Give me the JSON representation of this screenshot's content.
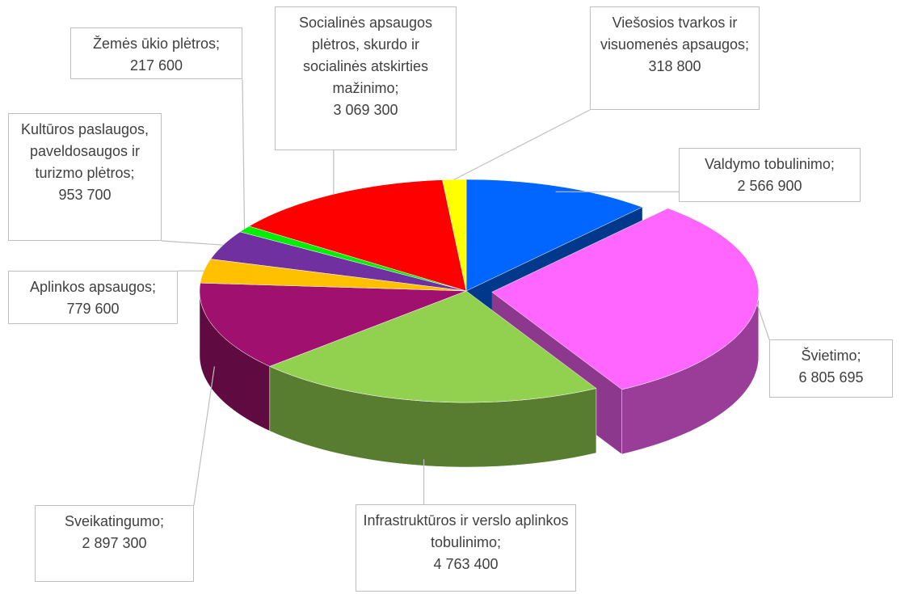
{
  "chart_data": {
    "type": "pie",
    "categories": [
      "Valdymo tobulinimo;",
      "Švietimo;",
      "Infrastruktūros ir verslo aplinkos tobulinimo;",
      "Sveikatingumo;",
      "Aplinkos apsaugos;",
      "Kultūros paslaugos, paveldosaugos ir turizmo plėtros;",
      "Žemės ūkio plėtros;",
      "Socialinės apsaugos plėtros, skurdo ir socialinės atskirties mažinimo;",
      "Viešosios tvarkos ir visuomenės apsaugos;"
    ],
    "values": [
      2566900,
      6805695,
      4763400,
      2897300,
      779600,
      953700,
      217600,
      3069300,
      318800
    ],
    "value_labels": [
      "2 566 900",
      "6 805 695",
      "4 763 400",
      "2 897 300",
      "779 600",
      "953 700",
      "217 600",
      "3 069 300",
      "318 800"
    ],
    "colors": [
      "#0066ff",
      "#ff66ff",
      "#92d050",
      "#a0106e",
      "#ffc000",
      "#7030a0",
      "#00ee00",
      "#ff0000",
      "#ffff00"
    ]
  }
}
